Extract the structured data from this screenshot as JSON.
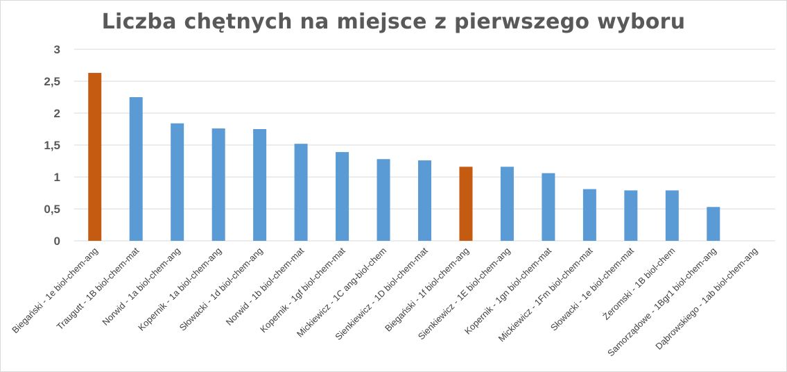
{
  "chart_data": {
    "type": "bar",
    "title": "Liczba chętnych na miejsce z pierwszego wyboru",
    "xlabel": "",
    "ylabel": "",
    "ylim": [
      0,
      3
    ],
    "yticks": [
      "0",
      "0,5",
      "1",
      "1,5",
      "2",
      "2,5",
      "3"
    ],
    "ytick_values": [
      0,
      0.5,
      1,
      1.5,
      2,
      2.5,
      3
    ],
    "grid": true,
    "legend": "none",
    "categories": [
      "Biegański - 1e biol-chem-ang",
      "Traugutt - 1B biol-chem-mat",
      "Norwid - 1a biol-chem-ang",
      "Kopernik - 1a biol-chem-ang",
      "Słowacki - 1d biol-chem-ang",
      "Norwid - 1b biol-chem-mat",
      "Kopernik - 1gf biol-chem-mat",
      "Mickiewicz - 1C ang-biol-chem",
      "Sienkiewicz - 1D biol-chem-mat",
      "Biegański - 1f biol-chem-ang",
      "Sienkiewicz - 1E biol-chem-ang",
      "Kopernik - 1gn biol-chem-mat",
      "Mickiewicz - 1Fm biol-chem-mat",
      "Słowacki - 1e biol-chem-mat",
      "Żeromski - 1B biol-chem",
      "Samorządowe - 1Bgr1 biol-chem-ang",
      "Dąbrowskiego - 1ab biol-chem-ang"
    ],
    "values": [
      2.63,
      2.25,
      1.84,
      1.76,
      1.75,
      1.52,
      1.39,
      1.28,
      1.26,
      1.16,
      1.16,
      1.06,
      0.81,
      0.79,
      0.79,
      0.53,
      0
    ],
    "bar_colors": [
      "#c55a11",
      "#5b9bd5",
      "#5b9bd5",
      "#5b9bd5",
      "#5b9bd5",
      "#5b9bd5",
      "#5b9bd5",
      "#5b9bd5",
      "#5b9bd5",
      "#c55a11",
      "#5b9bd5",
      "#5b9bd5",
      "#5b9bd5",
      "#5b9bd5",
      "#5b9bd5",
      "#5b9bd5",
      "#5b9bd5"
    ]
  }
}
